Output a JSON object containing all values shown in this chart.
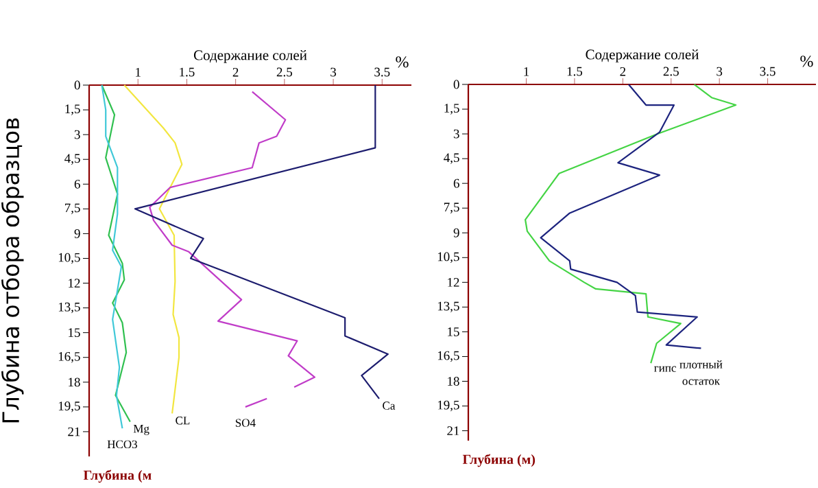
{
  "chart_data": [
    {
      "type": "line",
      "xlabel": "Содержание солей",
      "ylabel": "Глубина отбора образцов",
      "annotations": [
        "%",
        "Глубина (м"
      ],
      "xlim": [
        0.5,
        3.8
      ],
      "ylim": [
        22.5,
        0
      ],
      "xticks": [
        1,
        1.5,
        2,
        2.5,
        3,
        3.5
      ],
      "yticks": [
        0,
        {
          "value": 1.5,
          "label": "1,5"
        },
        3,
        {
          "value": 4.5,
          "label": "4,5"
        },
        6,
        {
          "value": 7.5,
          "label": "7,5"
        },
        9,
        {
          "value": 10.5,
          "label": "10,5"
        },
        12,
        {
          "value": 13.5,
          "label": "13,5"
        },
        15,
        {
          "value": 16.5,
          "label": "16,5"
        },
        18,
        {
          "value": 19.5,
          "label": "19,5"
        },
        21
      ],
      "series": [
        {
          "name": "Mg",
          "color": "#30c050",
          "x": [
            0.63,
            0.76,
            0.67,
            0.79,
            0.7,
            0.84,
            0.86,
            0.74,
            0.84,
            0.88,
            0.77,
            0.92
          ],
          "values": [
            0,
            1.8,
            4.4,
            6.6,
            9.1,
            10.8,
            11.8,
            13.2,
            14.4,
            16.2,
            18.8,
            20.4
          ]
        },
        {
          "name": "HCO3",
          "color": "#40c8d8",
          "x": [
            0.63,
            0.67,
            0.67,
            0.79,
            0.79,
            0.74,
            0.83,
            0.74,
            0.81,
            0.78,
            0.84
          ],
          "values": [
            0,
            1.5,
            3.1,
            5.0,
            7.8,
            10.0,
            11.0,
            14.2,
            17.1,
            18.8,
            20.8
          ]
        },
        {
          "name": "CL",
          "color": "#f2e640",
          "x": [
            0.86,
            1.26,
            1.38,
            1.45,
            1.33,
            1.22,
            1.37,
            1.38,
            1.36,
            1.42,
            1.42,
            1.35
          ],
          "values": [
            0,
            2.6,
            3.5,
            4.8,
            6.2,
            7.5,
            9.1,
            11.9,
            13.9,
            15.3,
            16.5,
            19.9
          ]
        },
        {
          "name": "SO4",
          "color": "#c03cc8",
          "x": [
            2.17,
            2.51,
            2.42,
            2.24,
            2.17,
            1.33,
            1.12,
            1.16,
            1.35,
            1.52,
            2.06,
            1.82,
            2.63,
            2.54,
            2.81,
            2.6,
            null,
            2.32,
            2.1
          ],
          "values": [
            0.4,
            2.1,
            3.1,
            3.5,
            5.0,
            6.2,
            7.4,
            8.2,
            9.7,
            10.1,
            13.0,
            14.3,
            15.5,
            16.4,
            17.7,
            18.3,
            null,
            19.0,
            19.5
          ]
        },
        {
          "name": "Ca",
          "color": "#1c1c6e",
          "x": [
            3.43,
            3.43,
            0.97,
            1.67,
            1.54,
            3.12,
            3.12,
            3.56,
            3.29,
            3.47
          ],
          "values": [
            0,
            3.8,
            7.5,
            9.3,
            10.5,
            14.1,
            15.2,
            16.3,
            17.6,
            19.0
          ]
        }
      ]
    },
    {
      "type": "line",
      "xlabel": "Содержание солей",
      "annotations": [
        "%",
        "Глубина (м)"
      ],
      "xlim": [
        0.4,
        4.0
      ],
      "ylim": [
        21.6,
        0
      ],
      "xticks": [
        1,
        1.5,
        2,
        2.5,
        3,
        3.5
      ],
      "yticks": [
        0,
        {
          "value": 1.5,
          "label": "1,5"
        },
        3,
        {
          "value": 4.5,
          "label": "4,5"
        },
        6,
        {
          "value": 7.5,
          "label": "7,5"
        },
        9,
        {
          "value": 10.5,
          "label": "10,5"
        },
        12,
        {
          "value": 13.5,
          "label": "13,5"
        },
        15,
        {
          "value": 16.5,
          "label": "16,5"
        },
        18,
        {
          "value": 19.5,
          "label": "19,5"
        },
        21
      ],
      "series": [
        {
          "name": "гипс",
          "color": "#44d444",
          "x": [
            2.74,
            2.92,
            3.17,
            2.36,
            1.34,
            0.99,
            1.01,
            1.24,
            1.6,
            1.72,
            2.24,
            2.26,
            2.6,
            2.35,
            2.29
          ],
          "values": [
            0,
            0.8,
            1.25,
            3.0,
            5.4,
            8.2,
            8.9,
            10.7,
            12.0,
            12.4,
            12.7,
            14.1,
            14.5,
            15.7,
            16.9
          ]
        },
        {
          "name": "плотный остаток",
          "color": "#1c237e",
          "x": [
            2.06,
            2.24,
            2.53,
            2.38,
            1.95,
            2.38,
            1.45,
            1.15,
            1.45,
            1.46,
            1.94,
            2.13,
            2.15,
            2.77,
            2.45,
            2.81
          ],
          "values": [
            0,
            1.25,
            1.25,
            2.9,
            4.75,
            5.5,
            7.8,
            9.3,
            10.7,
            11.2,
            12.0,
            12.8,
            13.8,
            14.1,
            15.8,
            16.0
          ]
        }
      ]
    }
  ]
}
